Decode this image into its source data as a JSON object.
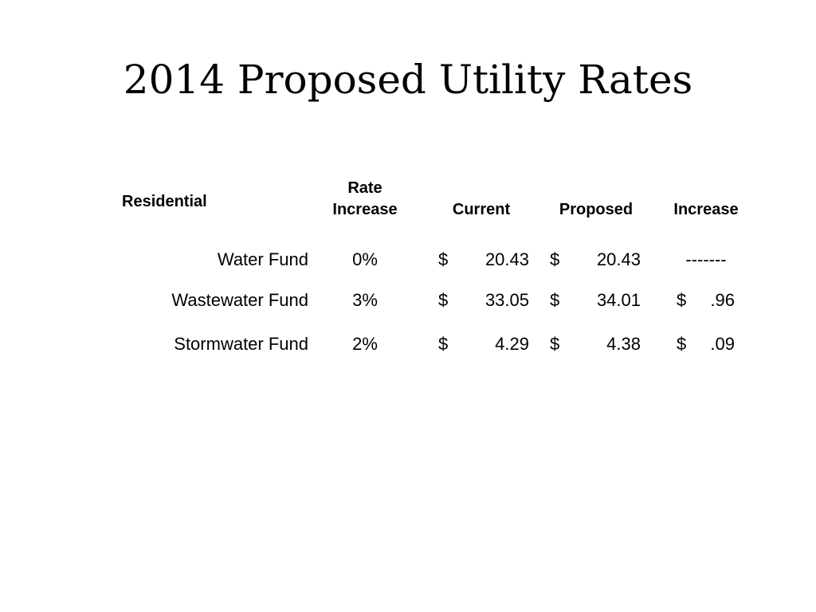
{
  "title": "2014 Proposed Utility Rates",
  "table": {
    "section_label": "Residential",
    "headers": {
      "rate_increase_line1": "Rate",
      "rate_increase_line2": "Increase",
      "current": "Current",
      "proposed": "Proposed",
      "increase": "Increase"
    },
    "rows": [
      {
        "fund": "Water Fund",
        "rate_increase": "0%",
        "current_symbol": "$",
        "current_value": "20.43",
        "proposed_symbol": "$",
        "proposed_value": "20.43",
        "increase_symbol": "",
        "increase_value": "-------"
      },
      {
        "fund": "Wastewater Fund",
        "rate_increase": "3%",
        "current_symbol": "$",
        "current_value": "33.05",
        "proposed_symbol": "$",
        "proposed_value": "34.01",
        "increase_symbol": "$",
        "increase_value": ".96"
      },
      {
        "fund": "Stormwater Fund",
        "rate_increase": "2%",
        "current_symbol": "$",
        "current_value": "4.29",
        "proposed_symbol": "$",
        "proposed_value": "4.38",
        "increase_symbol": "$",
        "increase_value": ".09"
      }
    ]
  }
}
